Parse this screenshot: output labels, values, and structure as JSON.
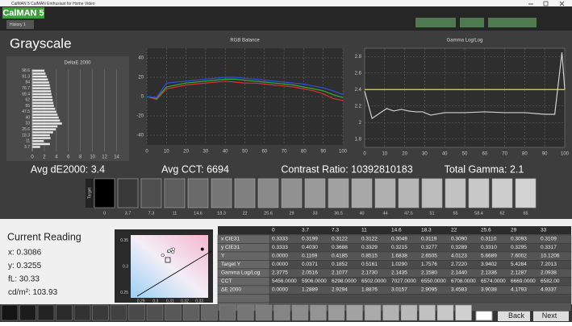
{
  "app": {
    "title": "CalMAN 5 CalMAN Enthusiast for Home Video",
    "logo": "CalMAN 5",
    "tab": "History 1"
  },
  "section_title": "Grayscale",
  "chart_data": [
    {
      "type": "bar",
      "horizontal": true,
      "title": "DeltaE 2000",
      "color": "#e8e8e8",
      "grid": true,
      "categories": [
        null,
        "3.7",
        null,
        "11",
        null,
        "18.3",
        null,
        "25.6",
        null,
        "33",
        null,
        "40",
        null,
        "47.5",
        null,
        "55",
        null,
        "62",
        null,
        "69.4",
        null,
        "76.7",
        null,
        "84",
        null,
        "91.3",
        null,
        "98.6"
      ],
      "values": [
        0,
        1.29,
        2.93,
        1.89,
        3.02,
        2.91,
        3.46,
        3.9,
        4.18,
        4.93,
        4.6,
        4.4,
        4.2,
        4.0,
        3.8,
        3.6,
        3.5,
        3.4,
        3.3,
        3.2,
        3.1,
        3.0,
        2.9,
        2.8,
        2.6,
        2.4,
        2.2,
        2.0
      ],
      "xlim": [
        0,
        15
      ],
      "xticks": [
        0,
        2,
        4,
        6,
        8,
        10,
        12,
        14
      ]
    },
    {
      "type": "line",
      "title": "RGB Balance",
      "grid": true,
      "x": [
        0,
        5,
        10,
        15,
        20,
        25,
        30,
        35,
        40,
        45,
        50,
        55,
        60,
        65,
        70,
        75,
        80,
        85,
        90,
        95,
        100
      ],
      "series": [
        {
          "color": "#e03030",
          "values": [
            0,
            -3,
            8,
            10,
            12,
            13,
            14,
            15,
            16,
            15,
            14,
            14,
            13,
            12,
            11,
            10,
            8,
            6,
            3,
            -2,
            -4
          ]
        },
        {
          "color": "#30b030",
          "values": [
            0,
            -2,
            10,
            12,
            14,
            15,
            16,
            17,
            18,
            18,
            17,
            16,
            15,
            14,
            13,
            12,
            10,
            8,
            6,
            2,
            -1
          ]
        },
        {
          "color": "#3050e0",
          "values": [
            0,
            -1,
            14,
            15,
            16,
            17,
            18,
            19,
            20,
            20,
            19,
            18,
            17,
            16,
            15,
            14,
            13,
            11,
            9,
            6,
            2
          ]
        }
      ],
      "xlim": [
        0,
        100
      ],
      "xticks": [
        0,
        10,
        20,
        30,
        40,
        50,
        60,
        70,
        80,
        90,
        100
      ],
      "ylim": [
        -50,
        50
      ],
      "yticks": [
        40,
        20,
        0,
        -20,
        -40
      ]
    },
    {
      "type": "line",
      "title": "Gamma Log/Log",
      "grid": true,
      "x": [
        0,
        3.7,
        7.3,
        11,
        14.6,
        18.3,
        22,
        25.6,
        29,
        33,
        40,
        50,
        60,
        70,
        80,
        90,
        95,
        98.6,
        100
      ],
      "series": [
        {
          "color": "#e6e62a",
          "x": [
            0,
            100
          ],
          "values": [
            2.4,
            2.4
          ]
        },
        {
          "color": "#d0d0d0",
          "values": [
            2.38,
            2.05,
            2.11,
            2.17,
            2.14,
            2.16,
            2.14,
            2.13,
            2.13,
            2.09,
            2.12,
            2.12,
            2.13,
            2.12,
            2.12,
            2.1,
            2.1,
            2.85,
            2.4
          ]
        }
      ],
      "xlim": [
        0,
        100
      ],
      "xticks": [
        0,
        10,
        20,
        30,
        40,
        50,
        60,
        70,
        80,
        90,
        100
      ],
      "ylim": [
        1.7,
        2.9
      ],
      "yticks": [
        2.8,
        2.6,
        2.4,
        2.2,
        2,
        1.8
      ]
    },
    {
      "type": "scatter",
      "color": "#ffffff",
      "x": [
        0.3049,
        0.309,
        0.311,
        0.3093,
        0.3109,
        0.3119,
        0.3122,
        0.332
      ],
      "values": [
        0.3215,
        0.3289,
        0.331,
        0.3295,
        0.3317,
        0.3277,
        0.3329,
        0.333
      ],
      "xlim": [
        0.283,
        0.336
      ],
      "xticks": [
        0.29,
        0.3,
        0.31,
        0.32,
        0.33
      ],
      "ylim": [
        0.24,
        0.36
      ],
      "yticks": [
        0.35,
        0.3,
        0.25
      ]
    }
  ],
  "stats": [
    "Avg dE2000: 3.4",
    "Avg CCT: 6694",
    "Contrast Ratio: 10392810183",
    "Total Gamma: 2.1"
  ],
  "swatches": {
    "target_label": "Target",
    "levels": [
      0,
      3.7,
      7.3,
      11,
      14.6,
      18.3,
      22,
      25.6,
      29,
      33,
      36.5,
      40,
      44,
      47.5,
      51,
      55,
      58.4,
      62,
      65
    ]
  },
  "reading": {
    "title": "Current Reading",
    "lines": [
      "x: 0.3086",
      "y: 0.3255",
      "fL: 30.33",
      "cd/m²: 103.93"
    ]
  },
  "table": {
    "columns": [
      "0",
      "3.7",
      "7.3",
      "11",
      "14.6",
      "18.3",
      "22",
      "25.6",
      "29",
      "33"
    ],
    "rows": [
      [
        "x CIE31",
        "0.3333",
        "0.3199",
        "0.3122",
        "0.3122",
        "0.3049",
        "0.3119",
        "0.3090",
        "0.3110",
        "0.3093",
        "0.3109"
      ],
      [
        "y CIE31",
        "0.3333",
        "0.4030",
        "0.3688",
        "0.3329",
        "0.3215",
        "0.3277",
        "0.3289",
        "0.3310",
        "0.3295",
        "0.3317"
      ],
      [
        "Y",
        "0.0000",
        "0.1169",
        "0.4185",
        "0.8515",
        "1.6838",
        "2.6505",
        "4.0123",
        "5.6689",
        "7.6002",
        "10.1206"
      ],
      [
        "Target Y",
        "0.0000",
        "0.0371",
        "0.1852",
        "0.5161",
        "1.0290",
        "1.7576",
        "2.7220",
        "3.9402",
        "5.4284",
        "7.2013"
      ],
      [
        "Gamma Log/Log",
        "2.3775",
        "2.0516",
        "2.1077",
        "2.1730",
        "2.1435",
        "2.1580",
        "2.1440",
        "2.1336",
        "2.1287",
        "2.0938"
      ],
      [
        "CCT",
        "5456.0000",
        "5906.0000",
        "6298.0000",
        "6502.0000",
        "7027.0000",
        "6550.0000",
        "6708.0000",
        "6574.0000",
        "6669.0000",
        "6582.00"
      ],
      [
        "ΔE 2000",
        "0.0000",
        "1.2889",
        "2.9294",
        "1.8876",
        "3.0157",
        "2.9095",
        "3.4583",
        "3.9038",
        "4.1793",
        "4.9337"
      ]
    ]
  },
  "nav": {
    "back": "Back",
    "next": "Next"
  }
}
